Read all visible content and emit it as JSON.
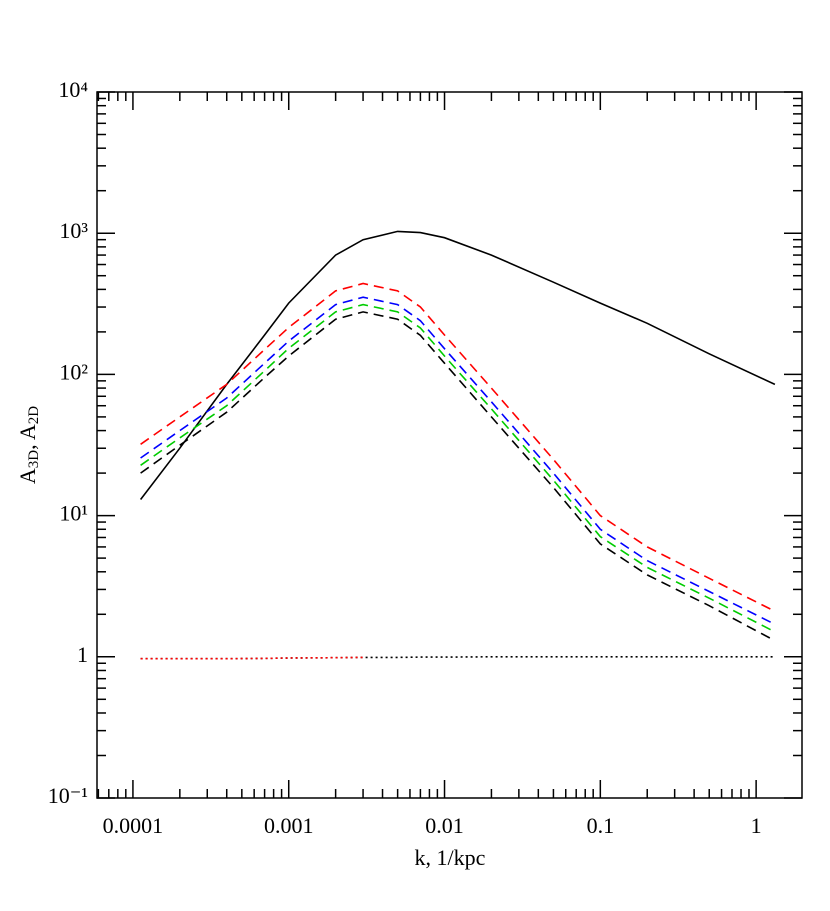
{
  "chart_data": {
    "type": "line",
    "x_label": "k, 1/kpc",
    "y_label_parts": [
      "A",
      "3D",
      ", A",
      "2D"
    ],
    "log_x": true,
    "log_y": true,
    "minor_ticks": true,
    "xlim": [
      5.88e-05,
      1.97
    ],
    "ylim": [
      0.1,
      10000
    ],
    "xticks": [
      0.0001,
      0.001,
      0.01,
      0.1,
      1
    ],
    "yticks": [
      {
        "value": 0.1,
        "label": "10⁻¹"
      },
      1,
      {
        "value": 10,
        "label": "10¹"
      },
      {
        "value": 100,
        "label": "10²"
      },
      {
        "value": 1000,
        "label": "10³"
      },
      {
        "value": 10000,
        "label": "10⁴"
      }
    ],
    "x": [
      0.000112,
      0.0002,
      0.0004,
      0.0007,
      0.001,
      0.002,
      0.003,
      0.005,
      0.007,
      0.01,
      0.02,
      0.05,
      0.1,
      0.2,
      0.5,
      1.32
    ],
    "series": [
      {
        "color": "#000000",
        "style": "solid",
        "values": [
          13,
          30,
          85,
          190,
          320,
          700,
          900,
          1030,
          1010,
          930,
          700,
          450,
          320,
          230,
          140,
          85
        ]
      },
      {
        "color": "#ff0000",
        "style": "dashed",
        "values": [
          32,
          50,
          85,
          150,
          215,
          390,
          440,
          390,
          300,
          190,
          80,
          25,
          10,
          6,
          3.6,
          2.1
        ]
      },
      {
        "color": "#0000ff",
        "style": "dashed",
        "values": [
          25.6,
          40,
          68,
          120,
          172,
          312,
          352,
          312,
          240,
          152,
          64,
          20,
          8,
          4.8,
          2.9,
          1.7
        ]
      },
      {
        "color": "#00cc00",
        "style": "dashed",
        "values": [
          22.7,
          35.5,
          60,
          106,
          153,
          277,
          312,
          277,
          213,
          135,
          57,
          17.8,
          7.1,
          4.3,
          2.6,
          1.5
        ]
      },
      {
        "color": "#000000",
        "style": "dashed",
        "values": [
          20,
          31.5,
          54,
          95,
          135,
          246,
          277,
          246,
          189,
          120,
          50,
          15.8,
          6.3,
          3.8,
          2.3,
          1.3
        ]
      },
      {
        "color": "#000000",
        "style": "dotted",
        "values": [
          0.97,
          0.97,
          0.97,
          0.975,
          0.98,
          0.985,
          0.99,
          0.99,
          0.995,
          0.995,
          1,
          1,
          1,
          1,
          1,
          1
        ]
      },
      {
        "color": "#ff0000",
        "style": "dotted",
        "values": [
          0.97,
          0.97,
          0.97,
          0.975,
          0.98,
          0.985,
          0.99,
          null,
          null,
          null,
          null,
          null,
          null,
          null,
          null,
          null
        ]
      }
    ]
  }
}
